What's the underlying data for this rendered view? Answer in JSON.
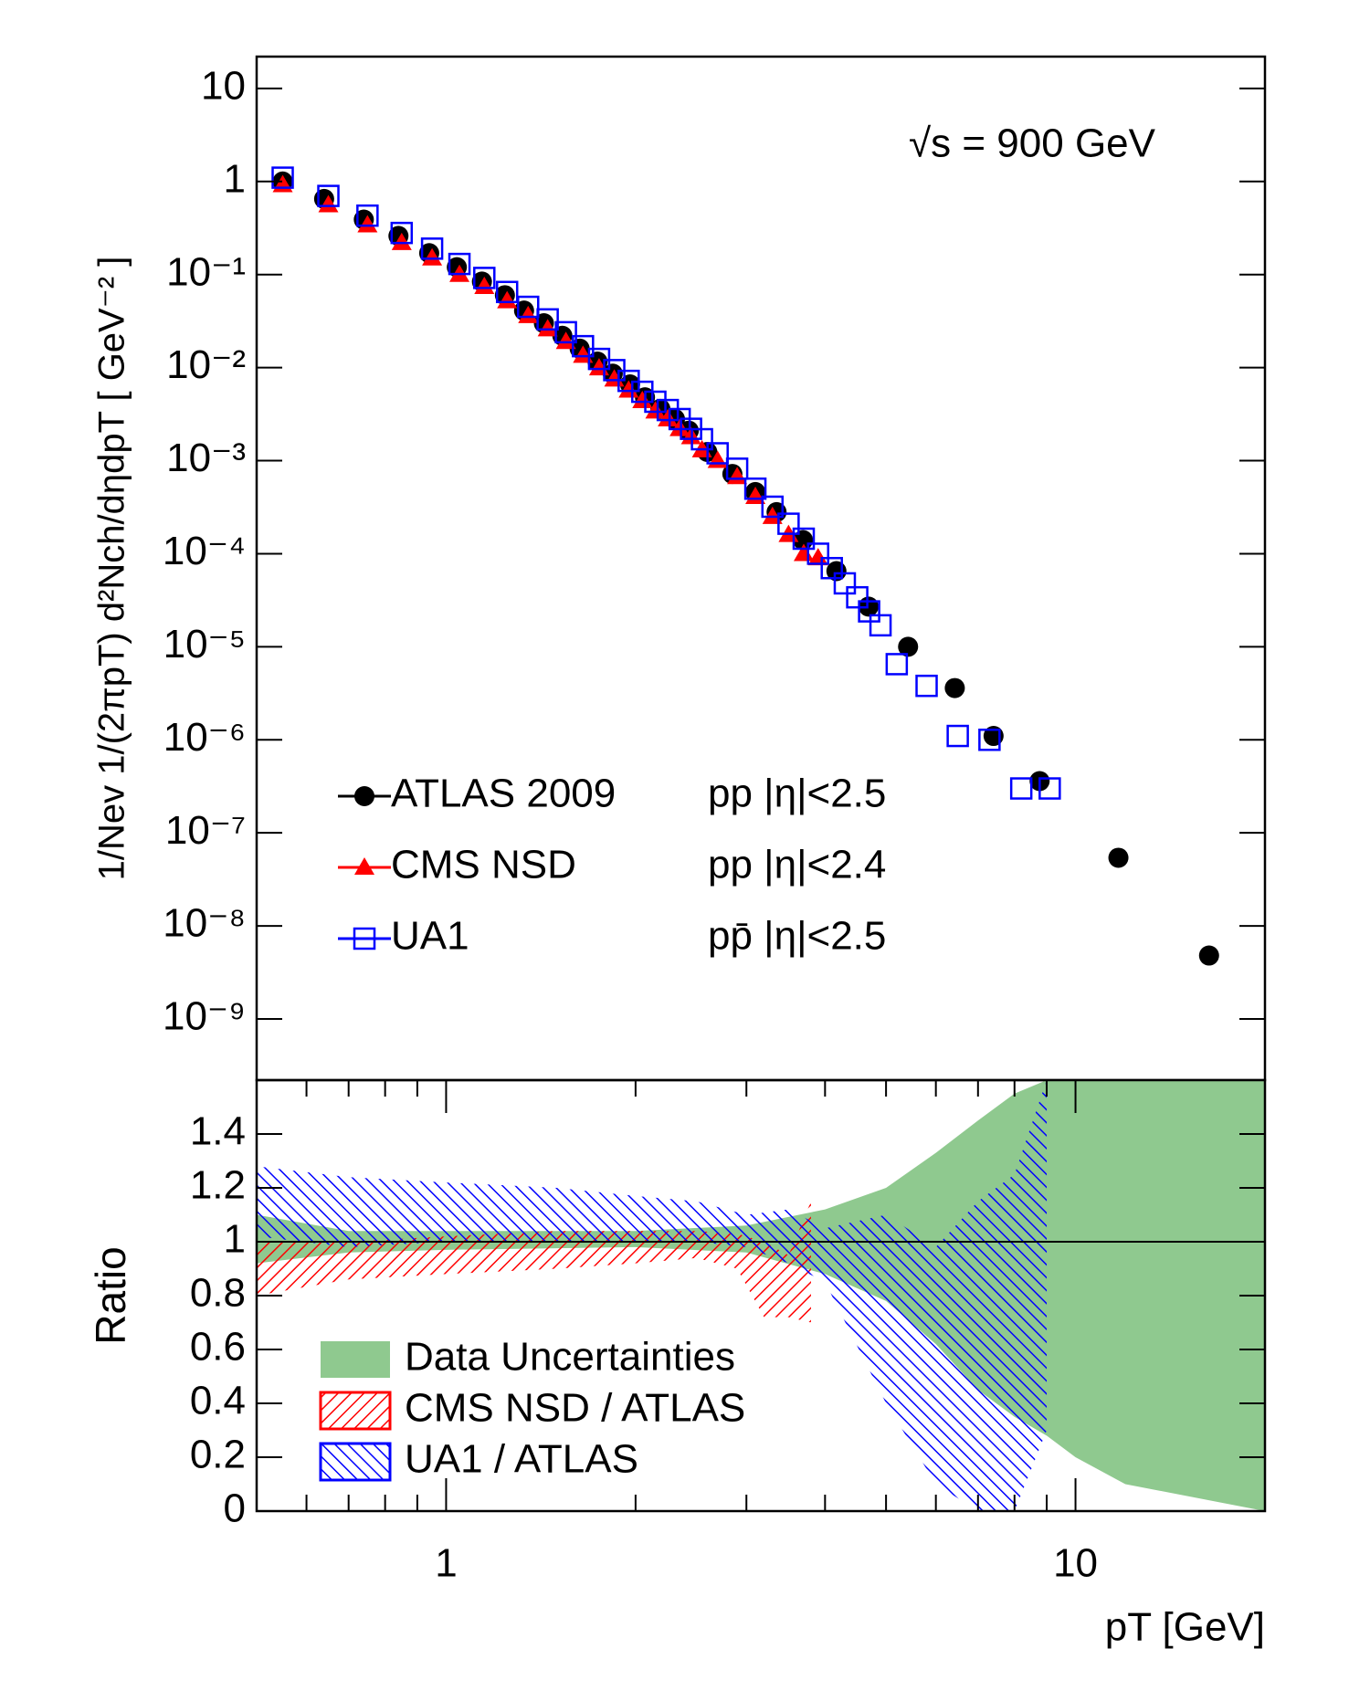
{
  "chart_data": [
    {
      "type": "scatter",
      "xlog": true,
      "ylog": true,
      "ylabel": "1/Nev 1/(2πpT) d²Nch/dηdpT [ GeV⁻² ]",
      "annotation": "√s = 900 GeV",
      "xlim": [
        0.5,
        20
      ],
      "ylim": [
        2.2e-10,
        22
      ],
      "yticks": [
        10,
        1,
        {
          "value": 0.1,
          "label": "10⁻¹"
        },
        {
          "value": 0.01,
          "label": "10⁻²"
        },
        {
          "value": 0.001,
          "label": "10⁻³"
        },
        {
          "value": 0.0001,
          "label": "10⁻⁴"
        },
        {
          "value": 1e-05,
          "label": "10⁻⁵"
        },
        {
          "value": 1e-06,
          "label": "10⁻⁶"
        },
        {
          "value": 1e-07,
          "label": "10⁻⁷"
        },
        {
          "value": 1e-08,
          "label": "10⁻⁸"
        },
        {
          "value": 1e-09,
          "label": "10⁻⁹"
        }
      ],
      "series": [
        {
          "name": "ATLAS 2009",
          "note": "pp |η|<2.5",
          "color": "#000000",
          "marker": "circle",
          "x": [
            0.55,
            0.64,
            0.74,
            0.84,
            0.94,
            1.04,
            1.14,
            1.24,
            1.33,
            1.43,
            1.53,
            1.63,
            1.74,
            1.84,
            1.96,
            2.07,
            2.19,
            2.31,
            2.43,
            2.6,
            2.85,
            3.1,
            3.35,
            3.69,
            4.17,
            4.69,
            5.42,
            6.43,
            7.41,
            8.77,
            11.7,
            16.3
          ],
          "values": [
            1.0,
            0.65,
            0.39,
            0.26,
            0.17,
            0.12,
            0.084,
            0.06,
            0.041,
            0.03,
            0.022,
            0.016,
            0.0116,
            0.0086,
            0.0066,
            0.0048,
            0.0036,
            0.0028,
            0.0021,
            0.00124,
            0.00072,
            0.00046,
            0.00028,
            0.00014,
            6.5e-05,
            2.7e-05,
            1e-05,
            3.6e-06,
            1.1e-06,
            3.6e-07,
            5.4e-08,
            4.8e-09
          ]
        },
        {
          "name": "CMS NSD",
          "note": "pp |η|<2.4",
          "color": "#ff0000",
          "marker": "triangle",
          "x": [
            0.55,
            0.65,
            0.75,
            0.85,
            0.95,
            1.05,
            1.15,
            1.25,
            1.35,
            1.45,
            1.55,
            1.65,
            1.75,
            1.85,
            1.95,
            2.05,
            2.15,
            2.25,
            2.35,
            2.45,
            2.55,
            2.7,
            2.9,
            3.1,
            3.3,
            3.5,
            3.7,
            3.9
          ],
          "values": [
            0.92,
            0.56,
            0.34,
            0.22,
            0.15,
            0.1,
            0.074,
            0.052,
            0.036,
            0.026,
            0.019,
            0.0135,
            0.0099,
            0.0075,
            0.0057,
            0.0044,
            0.0034,
            0.0028,
            0.0022,
            0.0018,
            0.0013,
            0.001,
            0.00067,
            0.00041,
            0.00025,
            0.00016,
            0.0001,
            9e-05
          ]
        },
        {
          "name": "UA1",
          "note": "pp̄ |η|<2.5",
          "color": "#0000ff",
          "marker": "square",
          "x": [
            0.55,
            0.65,
            0.75,
            0.85,
            0.95,
            1.05,
            1.15,
            1.25,
            1.35,
            1.45,
            1.55,
            1.65,
            1.75,
            1.85,
            1.95,
            2.05,
            2.15,
            2.25,
            2.35,
            2.45,
            2.55,
            2.7,
            2.9,
            3.1,
            3.3,
            3.5,
            3.7,
            3.9,
            4.1,
            4.3,
            4.5,
            4.7,
            4.9,
            5.2,
            5.8,
            6.5,
            7.3,
            8.2,
            9.1
          ],
          "values": [
            1.1,
            0.7,
            0.43,
            0.28,
            0.19,
            0.13,
            0.092,
            0.065,
            0.045,
            0.033,
            0.024,
            0.017,
            0.0124,
            0.0094,
            0.0072,
            0.0055,
            0.0043,
            0.0035,
            0.0028,
            0.0022,
            0.0017,
            0.0012,
            0.00082,
            0.0005,
            0.00032,
            0.00021,
            0.000145,
            0.0001,
            7e-05,
            4.8e-05,
            3.4e-05,
            2.4e-05,
            1.7e-05,
            6.5e-06,
            3.8e-06,
            1.1e-06,
            1e-06,
            3e-07,
            3e-07
          ]
        }
      ]
    },
    {
      "type": "band",
      "xlog": true,
      "ylog": false,
      "ylabel": "Ratio",
      "xlabel": "pT [GeV]",
      "xlim": [
        0.5,
        20
      ],
      "ylim": [
        0,
        1.6
      ],
      "xticks": [
        1,
        10
      ],
      "xminor": [
        0.5,
        0.6,
        0.7,
        0.8,
        0.9,
        2,
        3,
        4,
        5,
        6,
        7,
        8,
        9,
        20
      ],
      "yticks": [
        0,
        0.2,
        0.4,
        0.6,
        0.8,
        1,
        1.2,
        1.4
      ],
      "refline": 1,
      "series": [
        {
          "name": "Data Uncertainties",
          "color": "#8fc98f",
          "fill": "solid",
          "x": [
            0.5,
            0.7,
            1,
            2,
            3,
            4,
            5,
            6,
            7,
            8,
            9,
            10,
            12,
            20
          ],
          "high": [
            1.1,
            1.04,
            1.04,
            1.04,
            1.06,
            1.12,
            1.2,
            1.33,
            1.45,
            1.55,
            1.6,
            1.6,
            1.6,
            1.6
          ],
          "low": [
            0.92,
            0.96,
            0.97,
            0.98,
            0.96,
            0.88,
            0.78,
            0.62,
            0.45,
            0.35,
            0.28,
            0.2,
            0.1,
            0
          ]
        },
        {
          "name": "CMS NSD / ATLAS",
          "color": "#ff0000",
          "fill": "hatch-down",
          "x": [
            0.5,
            0.7,
            1,
            1.5,
            2,
            2.5,
            2.9,
            3.2,
            3.5,
            3.8
          ],
          "high": [
            1.0,
            1.0,
            1.02,
            1.04,
            1.04,
            1.04,
            1.03,
            1.0,
            0.95,
            1.15
          ],
          "low": [
            0.8,
            0.86,
            0.88,
            0.9,
            0.92,
            0.94,
            0.9,
            0.72,
            0.72,
            0.7
          ]
        },
        {
          "name": "UA1 / ATLAS",
          "color": "#0000ff",
          "fill": "hatch-up",
          "x": [
            0.5,
            0.7,
            1,
            1.5,
            2,
            2.5,
            3,
            3.5,
            4,
            5,
            6,
            7,
            8,
            9
          ],
          "high": [
            1.28,
            1.24,
            1.22,
            1.2,
            1.17,
            1.15,
            1.1,
            1.12,
            1.05,
            1.1,
            0.98,
            1.15,
            1.25,
            1.6
          ],
          "low": [
            1.02,
            0.98,
            1.0,
            1.0,
            1.0,
            1.0,
            0.98,
            0.92,
            0.85,
            0.4,
            0.1,
            0,
            0,
            0.3
          ]
        }
      ]
    }
  ]
}
